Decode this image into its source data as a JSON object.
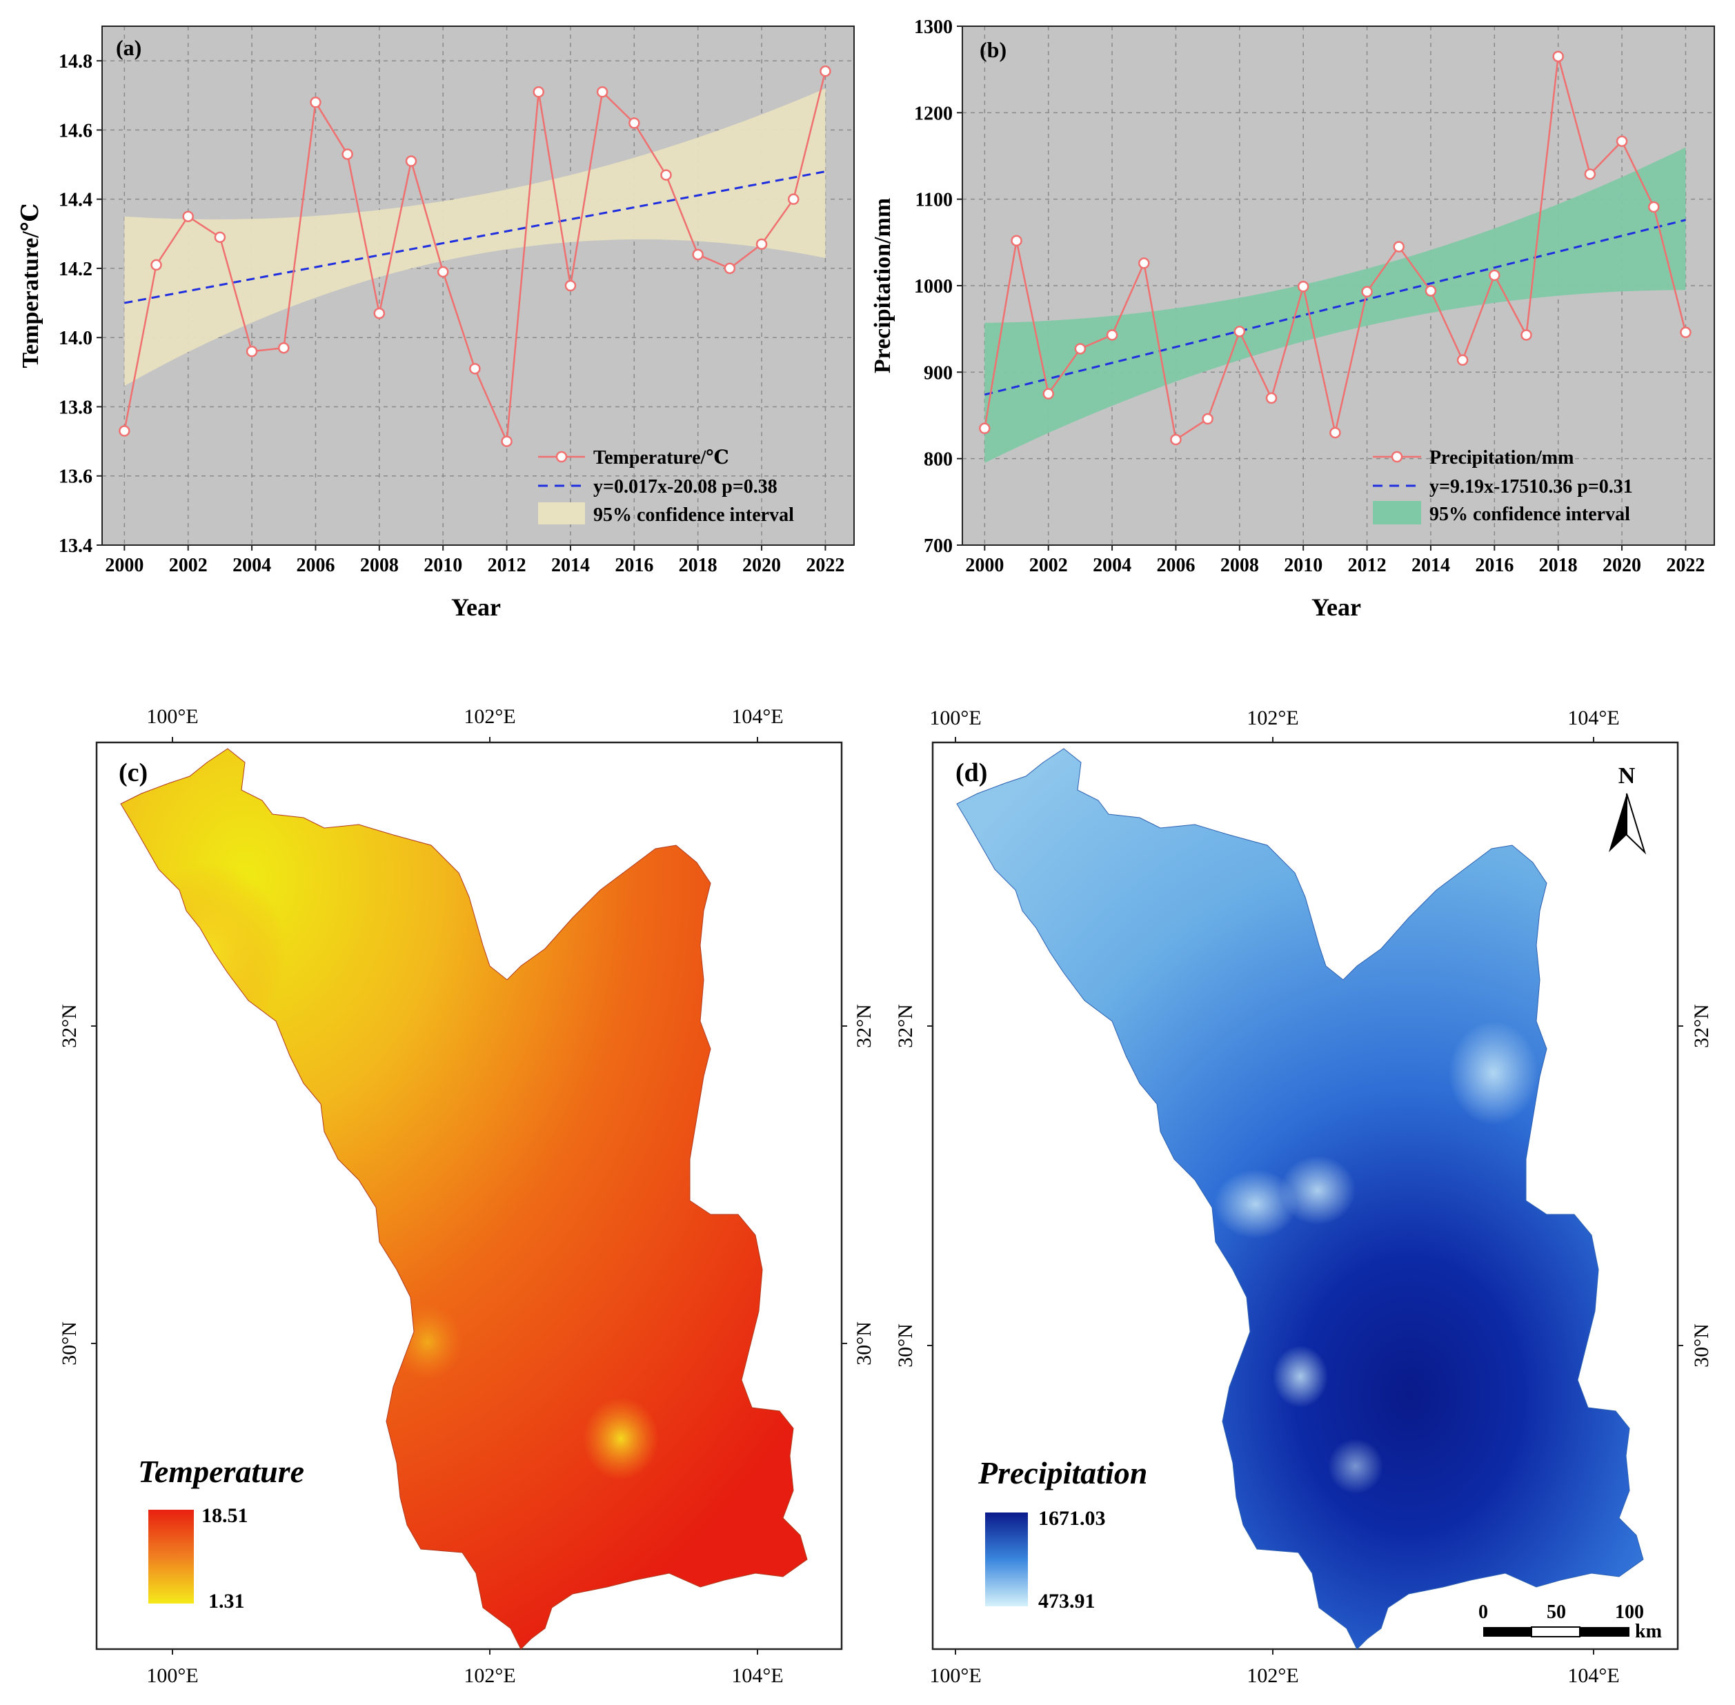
{
  "chart_data": [
    {
      "panel": "(a)",
      "type": "line",
      "title": "",
      "xlabel": "Year",
      "ylabel": "Temperature/℃",
      "xlim": [
        1999.3,
        2022.9
      ],
      "ylim": [
        13.4,
        14.9
      ],
      "xticks": [
        2000,
        2002,
        2004,
        2006,
        2008,
        2010,
        2012,
        2014,
        2016,
        2018,
        2020,
        2022
      ],
      "yticks": [
        13.4,
        13.6,
        13.8,
        14.0,
        14.2,
        14.4,
        14.6,
        14.8
      ],
      "ytick_labels": [
        "13.4",
        "13.6",
        "13.8",
        "14.0",
        "14.2",
        "14.4",
        "14.6",
        "14.8"
      ],
      "grid": true,
      "x": [
        2000,
        2001,
        2002,
        2003,
        2004,
        2005,
        2006,
        2007,
        2008,
        2009,
        2010,
        2011,
        2012,
        2013,
        2014,
        2015,
        2016,
        2017,
        2018,
        2019,
        2020,
        2021,
        2022
      ],
      "series": [
        {
          "name": "Temperature/℃",
          "kind": "line-marker",
          "color": "#f07070",
          "values": [
            13.73,
            14.21,
            14.35,
            14.29,
            13.96,
            13.97,
            14.68,
            14.53,
            14.07,
            14.51,
            14.19,
            13.91,
            13.7,
            14.71,
            14.15,
            14.71,
            14.62,
            14.47,
            14.24,
            14.2,
            14.27,
            14.4,
            14.77
          ]
        },
        {
          "name": "y=0.017x-20.08 p=0.38",
          "kind": "trend",
          "color": "#1f2fe0",
          "x": [
            2000,
            2022
          ],
          "values": [
            14.1,
            14.48
          ]
        },
        {
          "name": "95% confidence interval",
          "kind": "band",
          "color": "#e8e2c0",
          "x": [
            2000,
            2011,
            2022
          ],
          "lower": [
            13.86,
            14.24,
            14.23
          ],
          "upper": [
            14.35,
            14.41,
            14.72
          ]
        }
      ],
      "legend": "bottom-right",
      "label_color": "#e8e2c0",
      "plot_bg": "#c4c4c4"
    },
    {
      "panel": "(b)",
      "type": "line",
      "title": "",
      "xlabel": "Year",
      "ylabel": "Precipitation/mm",
      "xlim": [
        1999.3,
        2022.9
      ],
      "ylim": [
        700,
        1300
      ],
      "xticks": [
        2000,
        2002,
        2004,
        2006,
        2008,
        2010,
        2012,
        2014,
        2016,
        2018,
        2020,
        2022
      ],
      "yticks": [
        700,
        800,
        900,
        1000,
        1100,
        1200,
        1300
      ],
      "ytick_labels": [
        "700",
        "800",
        "900",
        "1000",
        "1100",
        "1200",
        "1300"
      ],
      "grid": true,
      "x": [
        2000,
        2001,
        2002,
        2003,
        2004,
        2005,
        2006,
        2007,
        2008,
        2009,
        2010,
        2011,
        2012,
        2013,
        2014,
        2015,
        2016,
        2017,
        2018,
        2019,
        2020,
        2021,
        2022
      ],
      "series": [
        {
          "name": "Precipitation/mm",
          "kind": "line-marker",
          "color": "#f07070",
          "values": [
            835,
            1052,
            875,
            927,
            943,
            1026,
            822,
            846,
            947,
            870,
            999,
            830,
            993,
            1045,
            994,
            914,
            1012,
            943,
            1265,
            1129,
            1167,
            1091,
            946
          ]
        },
        {
          "name": "y=9.19x-17510.36  p=0.31",
          "kind": "trend",
          "color": "#1f2fe0",
          "x": [
            2000,
            2022
          ],
          "values": [
            874,
            1076
          ]
        },
        {
          "name": "95% confidence interval",
          "kind": "band",
          "color": "#7fc9a6",
          "x": [
            2000,
            2011,
            2022
          ],
          "lower": [
            795,
            945,
            995
          ],
          "upper": [
            957,
            1010,
            1160
          ]
        }
      ],
      "legend": "bottom-right",
      "plot_bg": "#c4c4c4"
    },
    {
      "panel": "(c)",
      "type": "heatmap",
      "title": "Temperature",
      "colorbar": {
        "max": "18.51",
        "min": "1.31",
        "colors": [
          "#f0e020",
          "#f08020",
          "#e82010"
        ]
      },
      "lon_ticks": [
        "100°E",
        "102°E",
        "104°E"
      ],
      "lat_ticks": [
        "32°N",
        "30°N"
      ]
    },
    {
      "panel": "(d)",
      "type": "heatmap",
      "title": "Precipitation",
      "colorbar": {
        "max": "1671.03",
        "min": "473.91",
        "colors": [
          "#cfeef8",
          "#3a86de",
          "#0a1a8a"
        ]
      },
      "lon_ticks": [
        "100°E",
        "102°E",
        "104°E"
      ],
      "lat_ticks": [
        "32°N",
        "30°N"
      ],
      "north_arrow": "N",
      "scale_bar": {
        "labels": [
          "0",
          "50",
          "100"
        ],
        "unit": "km"
      }
    }
  ]
}
